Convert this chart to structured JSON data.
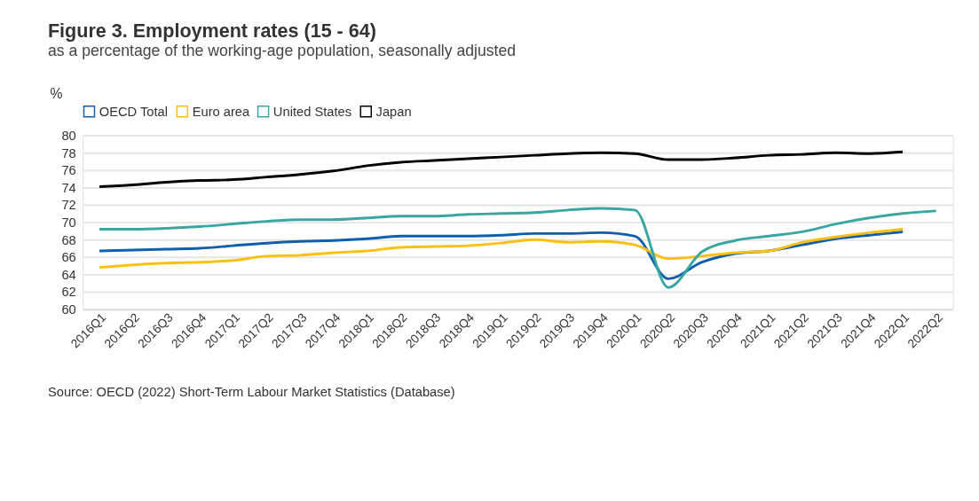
{
  "chart_data": {
    "type": "line",
    "title": "Figure 3. Employment rates (15 - 64)",
    "subtitle": "as a percentage of the working-age population, seasonally adjusted",
    "ylabel": "%",
    "categories": [
      "2016Q1",
      "2016Q2",
      "2016Q3",
      "2016Q4",
      "2017Q1",
      "2017Q2",
      "2017Q3",
      "2017Q4",
      "2018Q1",
      "2018Q2",
      "2018Q3",
      "2018Q4",
      "2019Q1",
      "2019Q2",
      "2019Q3",
      "2019Q4",
      "2020Q1",
      "2020Q2",
      "2020Q3",
      "2020Q4",
      "2021Q1",
      "2021Q2",
      "2021Q3",
      "2021Q4",
      "2022Q1",
      "2022Q2"
    ],
    "series": [
      {
        "name": "OECD Total",
        "color": "#0f5fab",
        "values": [
          66.7,
          66.8,
          66.9,
          67.0,
          67.3,
          67.6,
          67.8,
          67.9,
          68.1,
          68.4,
          68.4,
          68.4,
          68.5,
          68.7,
          68.7,
          68.8,
          68.4,
          63.5,
          65.4,
          66.4,
          66.7,
          67.4,
          68.1,
          68.5,
          68.9,
          null
        ]
      },
      {
        "name": "Euro area",
        "color": "#fdc010",
        "values": [
          64.8,
          65.1,
          65.3,
          65.4,
          65.6,
          66.1,
          66.2,
          66.5,
          66.7,
          67.1,
          67.2,
          67.3,
          67.6,
          68.0,
          67.7,
          67.8,
          67.4,
          65.8,
          66.1,
          66.5,
          66.7,
          67.7,
          68.3,
          68.8,
          69.2,
          null
        ]
      },
      {
        "name": "United States",
        "color": "#3aa6a1",
        "values": [
          69.2,
          69.2,
          69.3,
          69.5,
          69.8,
          70.1,
          70.3,
          70.3,
          70.5,
          70.7,
          70.7,
          70.9,
          71.0,
          71.1,
          71.4,
          71.6,
          71.4,
          62.5,
          66.6,
          67.9,
          68.4,
          68.9,
          69.8,
          70.5,
          71.0,
          71.3
        ]
      },
      {
        "name": "Japan",
        "color": "#000000",
        "values": [
          74.1,
          74.3,
          74.6,
          74.8,
          74.9,
          75.2,
          75.5,
          75.9,
          76.5,
          76.9,
          77.1,
          77.3,
          77.5,
          77.7,
          77.9,
          78.0,
          77.9,
          77.2,
          77.2,
          77.4,
          77.7,
          77.8,
          78.0,
          77.9,
          78.1,
          null
        ]
      }
    ],
    "ylim": [
      60,
      80
    ],
    "yticks": [
      60,
      62,
      64,
      66,
      68,
      70,
      72,
      74,
      76,
      78,
      80
    ],
    "grid": "y",
    "legend": "top",
    "annotations": [
      "Source: OECD (2022) Short-Term Labour Market Statistics (Database)"
    ]
  }
}
